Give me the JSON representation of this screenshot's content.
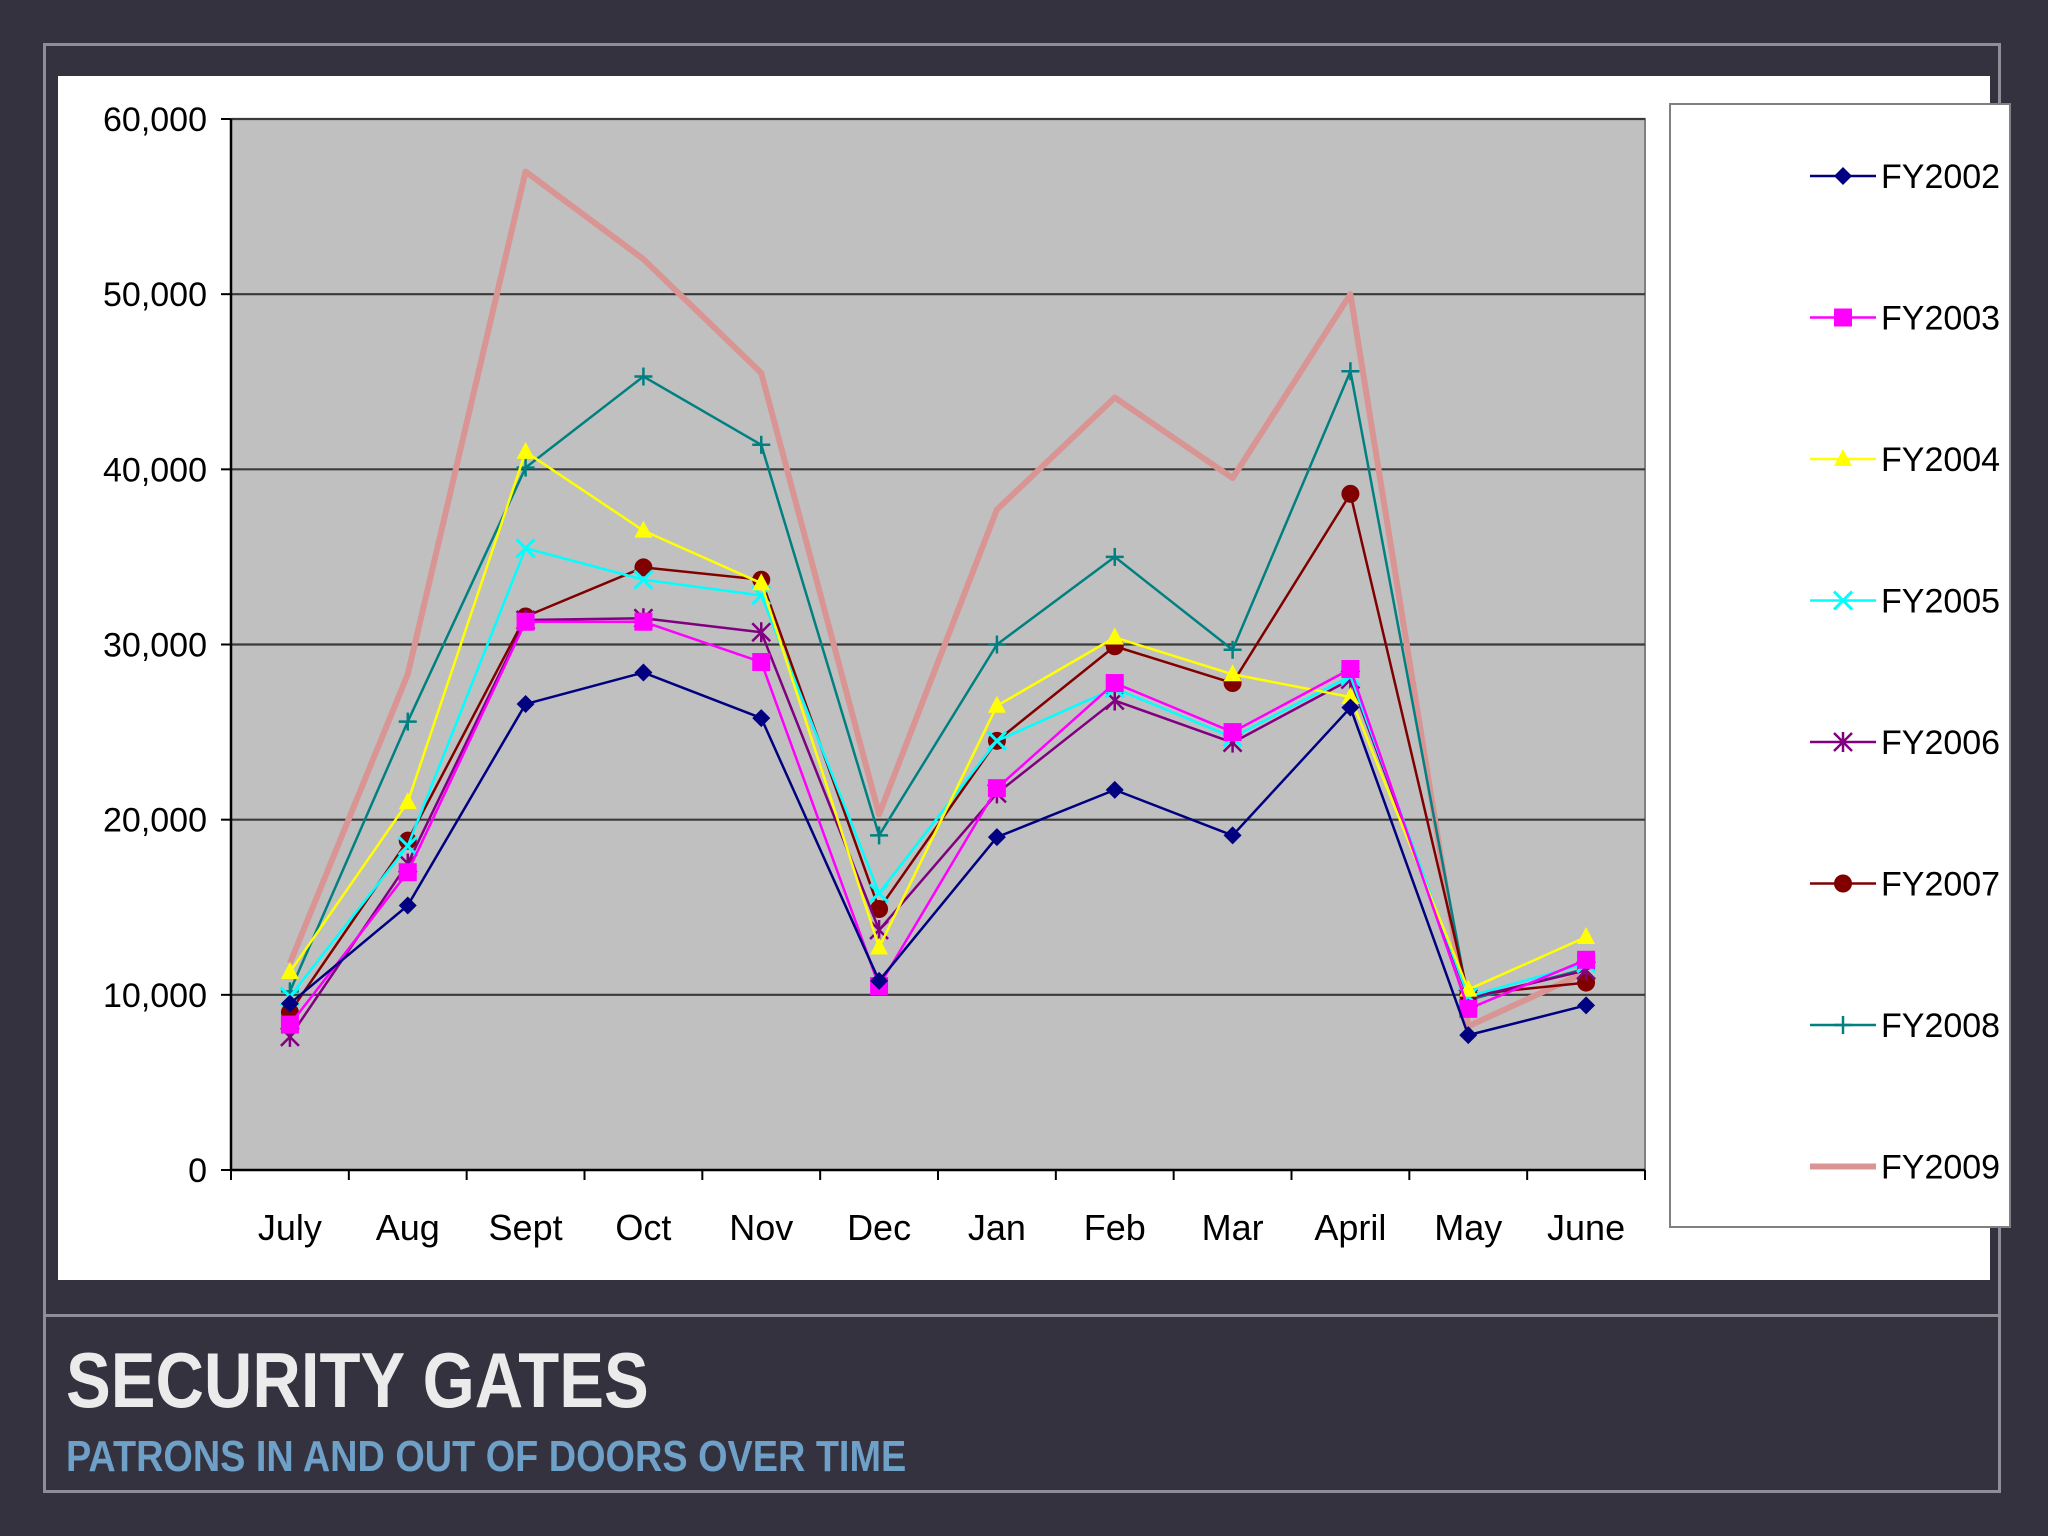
{
  "slide": {
    "title": "SECURITY GATES",
    "subtitle": "PATRONS IN AND OUT OF DOORS OVER TIME"
  },
  "chart_data": {
    "type": "line",
    "categories": [
      "July",
      "Aug",
      "Sept",
      "Oct",
      "Nov",
      "Dec",
      "Jan",
      "Feb",
      "Mar",
      "April",
      "May",
      "June"
    ],
    "ylim": [
      0,
      60000
    ],
    "yticks": [
      0,
      10000,
      20000,
      30000,
      40000,
      50000,
      60000
    ],
    "ytick_labels": [
      "0",
      "10,000",
      "20,000",
      "30,000",
      "40,000",
      "50,000",
      "60,000"
    ],
    "grid": "horizontal",
    "plot_background": "#c0c0c0",
    "legend_position": "right",
    "series": [
      {
        "name": "FY2002",
        "color": "#000080",
        "marker": "diamond",
        "values": [
          9500,
          15100,
          26600,
          28400,
          25800,
          10800,
          19000,
          21700,
          19100,
          26400,
          7700,
          9400
        ]
      },
      {
        "name": "FY2003",
        "color": "#ff00ff",
        "marker": "square",
        "values": [
          8300,
          17000,
          31300,
          31300,
          29000,
          10500,
          21800,
          27800,
          25000,
          28600,
          9200,
          12000
        ]
      },
      {
        "name": "FY2004",
        "color": "#ffff00",
        "marker": "triangle",
        "values": [
          11300,
          21000,
          41000,
          36500,
          33500,
          12700,
          26500,
          30400,
          28300,
          27000,
          10300,
          13300
        ]
      },
      {
        "name": "FY2005",
        "color": "#00ffff",
        "marker": "x",
        "values": [
          9900,
          18500,
          35500,
          33700,
          32800,
          15800,
          24500,
          27500,
          24700,
          28200,
          9900,
          11800
        ]
      },
      {
        "name": "FY2006",
        "color": "#800080",
        "marker": "star",
        "values": [
          7600,
          17500,
          31400,
          31500,
          30700,
          13700,
          21500,
          26800,
          24400,
          28000,
          9800,
          11400
        ]
      },
      {
        "name": "FY2007",
        "color": "#800000",
        "marker": "circle",
        "values": [
          9000,
          18800,
          31600,
          34400,
          33700,
          14900,
          24500,
          29900,
          27800,
          38600,
          10000,
          10700
        ]
      },
      {
        "name": "FY2008",
        "color": "#008080",
        "marker": "plus",
        "values": [
          10200,
          25600,
          40100,
          45300,
          41400,
          19100,
          30000,
          35000,
          29700,
          45600,
          9700,
          11500
        ]
      },
      {
        "name": "FY2009",
        "color": "#d99594",
        "marker": "none",
        "values": [
          11800,
          28300,
          57000,
          52000,
          45500,
          20300,
          37700,
          44100,
          39500,
          50000,
          8200,
          11300
        ]
      }
    ]
  }
}
